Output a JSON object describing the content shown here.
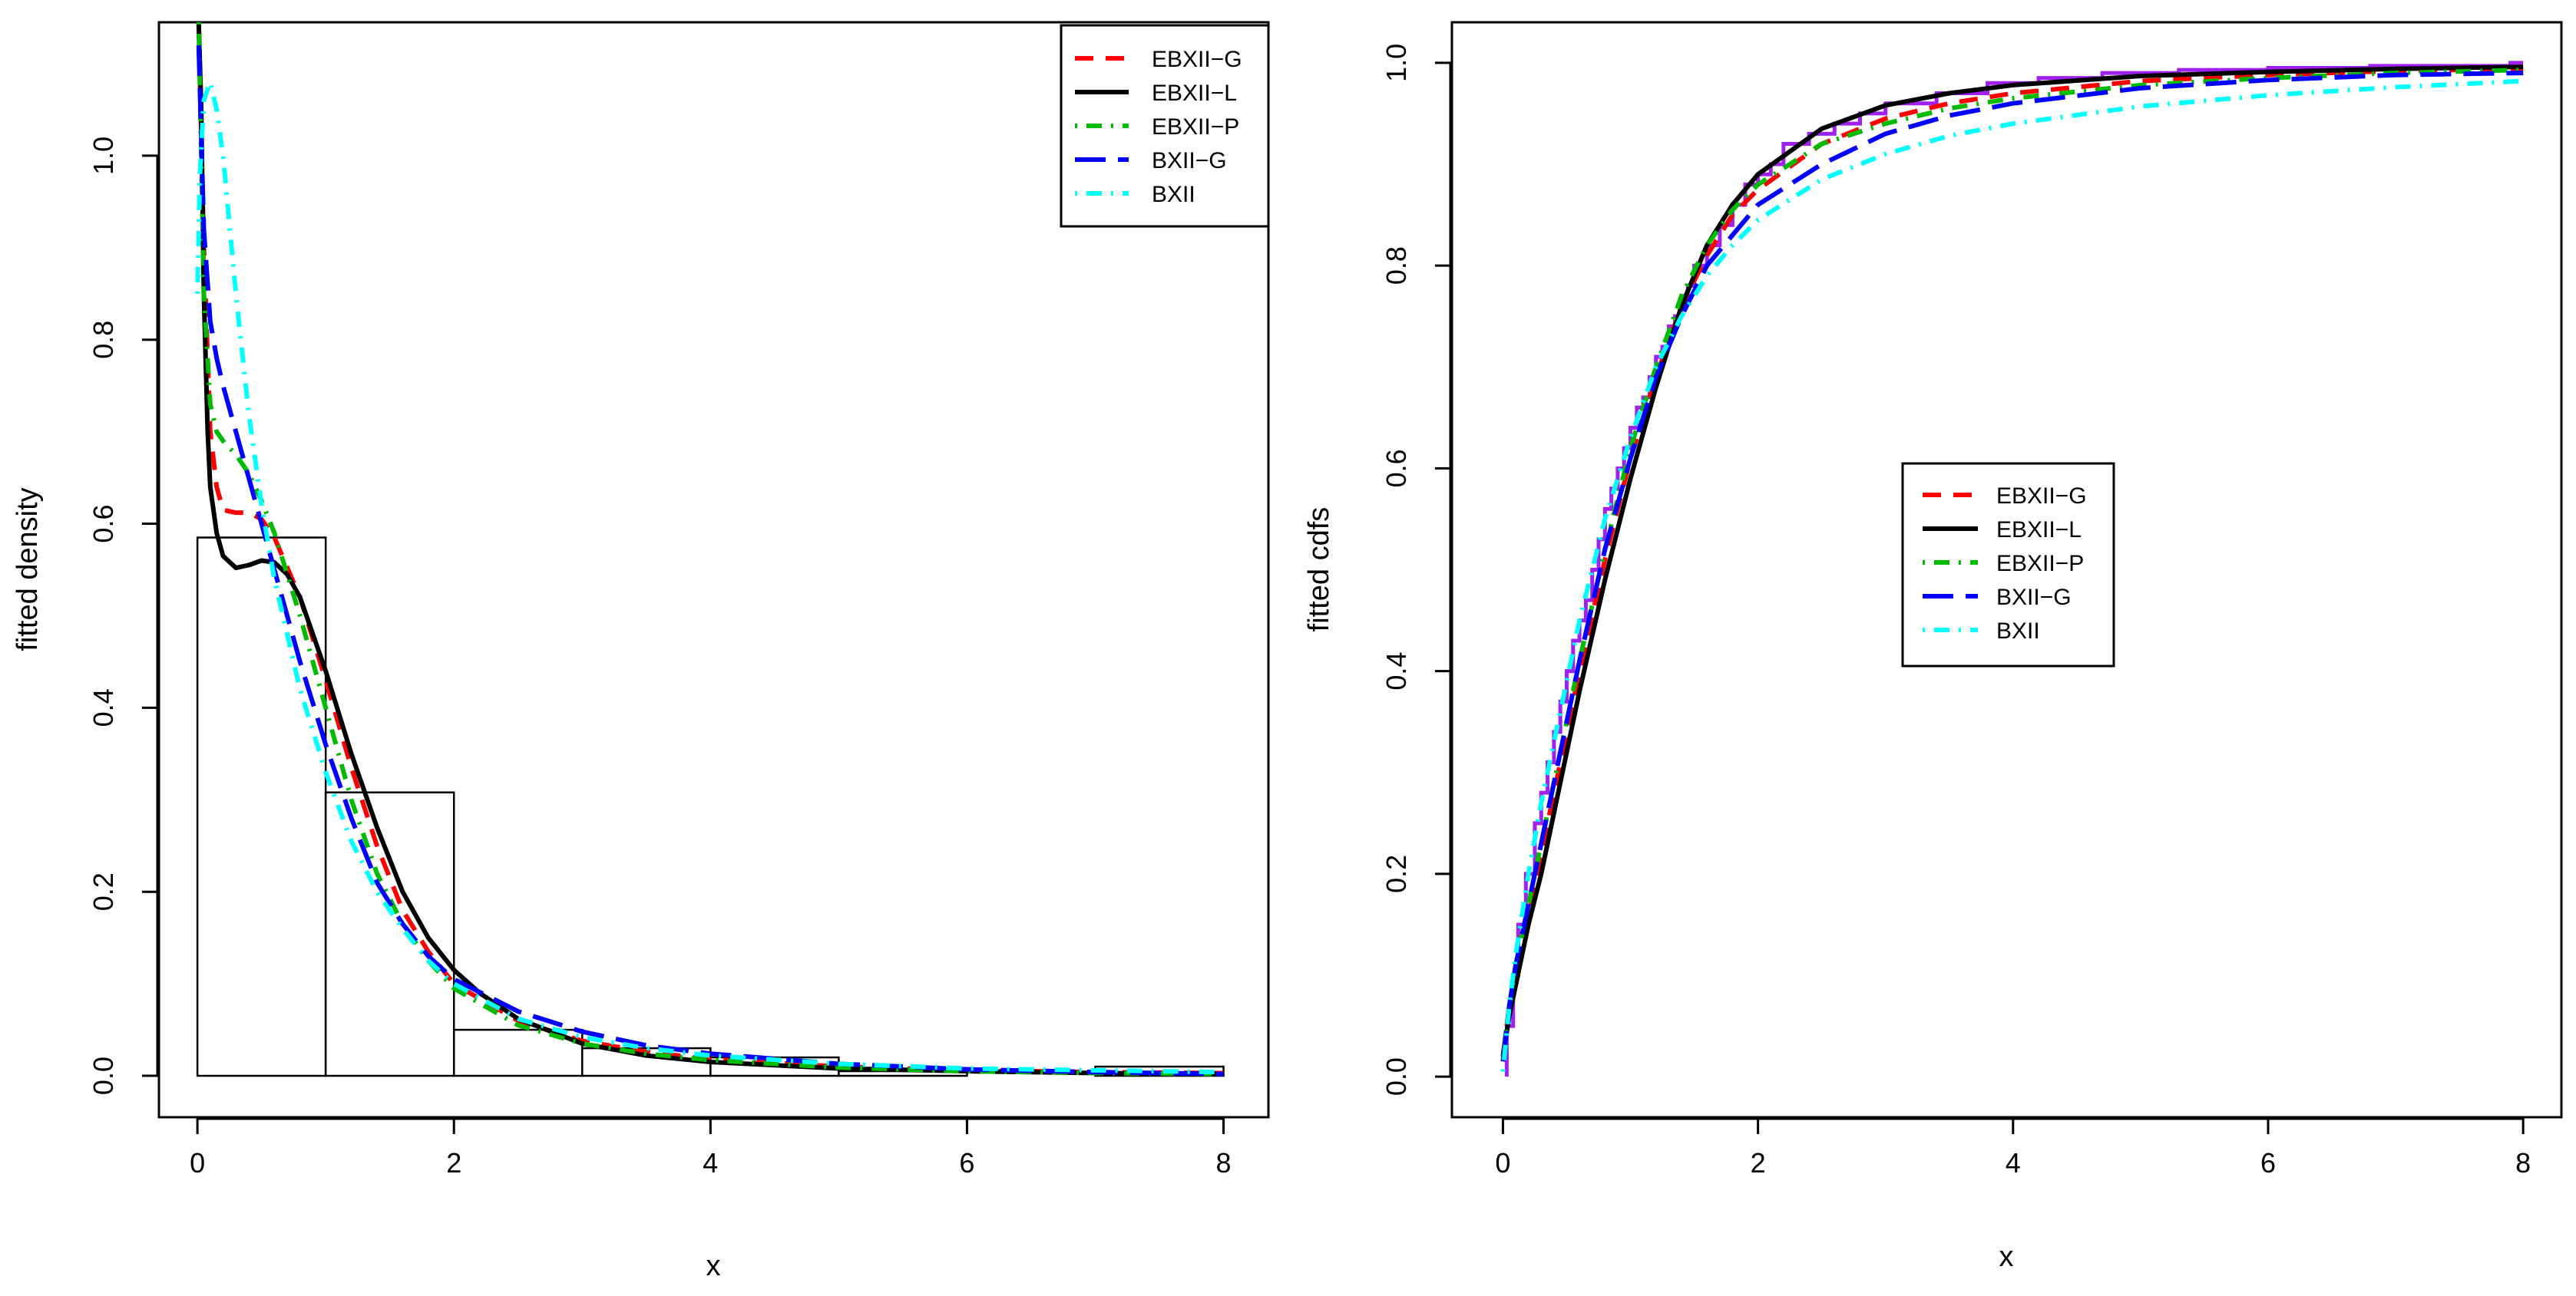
{
  "colors": {
    "EBXII-G": "#ff0000",
    "EBXII-L": "#000000",
    "EBXII-P": "#00bb00",
    "BXII-G": "#0000ff",
    "BXII": "#00ffff",
    "empirical": "#a020f0"
  },
  "chart_data": [
    {
      "type": "line",
      "overlay": "histogram",
      "title": "",
      "xlabel": "x",
      "ylabel": "fitted density",
      "xlim": [
        -0.3,
        8.35
      ],
      "ylim": [
        -0.045,
        1.145
      ],
      "xticks": [
        0,
        2,
        4,
        6,
        8
      ],
      "yticks": [
        0.0,
        0.2,
        0.4,
        0.6,
        0.8,
        1.0
      ],
      "xtick_labels": [
        "0",
        "2",
        "4",
        "6",
        "8"
      ],
      "ytick_labels": [
        "0.0",
        "0.2",
        "0.4",
        "0.6",
        "0.8",
        "1.0"
      ],
      "legend_position": "top-right",
      "legend": [
        "EBXII−G",
        "EBXII−L",
        "EBXII−P",
        "BXII−G",
        "BXII"
      ],
      "histogram": {
        "bin_edges": [
          0,
          1,
          2,
          3,
          4,
          5,
          6,
          7,
          8
        ],
        "density": [
          0.585,
          0.308,
          0.05,
          0.03,
          0.02,
          0.005,
          0.0,
          0.01
        ]
      },
      "series": [
        {
          "name": "EBXII-G",
          "dash": "dash",
          "x": [
            0.01,
            0.05,
            0.1,
            0.15,
            0.2,
            0.3,
            0.4,
            0.5,
            0.6,
            0.8,
            1.0,
            1.2,
            1.4,
            1.6,
            1.8,
            2.0,
            2.5,
            3.0,
            3.5,
            4.0,
            5.0,
            6.0,
            7.0,
            8.0
          ],
          "y": [
            1.15,
            0.9,
            0.7,
            0.64,
            0.615,
            0.612,
            0.612,
            0.605,
            0.585,
            0.52,
            0.43,
            0.335,
            0.25,
            0.18,
            0.135,
            0.1,
            0.06,
            0.038,
            0.026,
            0.018,
            0.01,
            0.006,
            0.004,
            0.003
          ]
        },
        {
          "name": "EBXII-L",
          "dash": "solid",
          "x": [
            0.01,
            0.03,
            0.05,
            0.08,
            0.1,
            0.15,
            0.2,
            0.3,
            0.4,
            0.5,
            0.6,
            0.7,
            0.8,
            0.9,
            1.0,
            1.1,
            1.2,
            1.3,
            1.4,
            1.6,
            1.8,
            2.0,
            2.2,
            2.5,
            3.0,
            3.5,
            4.0,
            5.0,
            6.0,
            7.0,
            8.0
          ],
          "y": [
            1.15,
            1.05,
            0.85,
            0.7,
            0.64,
            0.59,
            0.565,
            0.552,
            0.555,
            0.56,
            0.558,
            0.545,
            0.52,
            0.48,
            0.44,
            0.395,
            0.35,
            0.31,
            0.27,
            0.2,
            0.15,
            0.115,
            0.09,
            0.062,
            0.035,
            0.022,
            0.015,
            0.008,
            0.005,
            0.003,
            0.002
          ]
        },
        {
          "name": "EBXII-P",
          "dash": "dotdash",
          "x": [
            0.01,
            0.05,
            0.1,
            0.15,
            0.2,
            0.3,
            0.4,
            0.5,
            0.6,
            0.8,
            1.0,
            1.2,
            1.4,
            1.6,
            1.8,
            2.0,
            2.5,
            3.0,
            3.5,
            4.0,
            5.0,
            6.0,
            7.0,
            8.0
          ],
          "y": [
            1.15,
            0.85,
            0.73,
            0.7,
            0.69,
            0.675,
            0.655,
            0.625,
            0.59,
            0.5,
            0.4,
            0.3,
            0.22,
            0.165,
            0.125,
            0.095,
            0.055,
            0.035,
            0.024,
            0.017,
            0.009,
            0.005,
            0.003,
            0.002
          ]
        },
        {
          "name": "BXII-G",
          "dash": "longdash",
          "x": [
            0.01,
            0.05,
            0.1,
            0.15,
            0.2,
            0.3,
            0.4,
            0.5,
            0.6,
            0.8,
            1.0,
            1.2,
            1.4,
            1.6,
            1.8,
            2.0,
            2.5,
            3.0,
            3.5,
            4.0,
            5.0,
            6.0,
            7.0,
            8.0
          ],
          "y": [
            1.12,
            0.92,
            0.82,
            0.78,
            0.75,
            0.7,
            0.65,
            0.6,
            0.55,
            0.45,
            0.36,
            0.28,
            0.21,
            0.165,
            0.13,
            0.105,
            0.07,
            0.048,
            0.033,
            0.024,
            0.013,
            0.007,
            0.004,
            0.002
          ]
        },
        {
          "name": "BXII",
          "dash": "dotdash",
          "x": [
            0.0,
            0.02,
            0.05,
            0.1,
            0.15,
            0.2,
            0.3,
            0.4,
            0.5,
            0.6,
            0.8,
            1.0,
            1.2,
            1.4,
            1.6,
            1.8,
            2.0,
            2.5,
            3.0,
            3.5,
            4.0,
            5.0,
            6.0,
            7.0,
            8.0
          ],
          "y": [
            0.85,
            0.98,
            1.06,
            1.08,
            1.05,
            1.0,
            0.85,
            0.72,
            0.62,
            0.54,
            0.42,
            0.33,
            0.255,
            0.2,
            0.16,
            0.125,
            0.1,
            0.062,
            0.042,
            0.03,
            0.022,
            0.013,
            0.008,
            0.006,
            0.004
          ]
        }
      ]
    },
    {
      "type": "line",
      "title": "",
      "xlabel": "x",
      "ylabel": "fitted cdfs",
      "xlim": [
        -0.4,
        8.3
      ],
      "ylim": [
        -0.04,
        1.04
      ],
      "xticks": [
        0,
        2,
        4,
        6,
        8
      ],
      "yticks": [
        0.0,
        0.2,
        0.4,
        0.6,
        0.8,
        1.0
      ],
      "xtick_labels": [
        "0",
        "2",
        "4",
        "6",
        "8"
      ],
      "ytick_labels": [
        "0.0",
        "0.2",
        "0.4",
        "0.6",
        "0.8",
        "1.0"
      ],
      "legend_position": "center",
      "legend": [
        "EBXII−G",
        "EBXII−L",
        "EBXII−P",
        "BXII−G",
        "BXII"
      ],
      "empirical_cdf": {
        "x": [
          0.03,
          0.08,
          0.12,
          0.18,
          0.25,
          0.3,
          0.35,
          0.4,
          0.45,
          0.5,
          0.55,
          0.6,
          0.65,
          0.7,
          0.75,
          0.8,
          0.85,
          0.9,
          0.95,
          1.0,
          1.05,
          1.1,
          1.15,
          1.2,
          1.25,
          1.3,
          1.35,
          1.4,
          1.45,
          1.5,
          1.6,
          1.7,
          1.8,
          1.9,
          2.0,
          2.1,
          2.2,
          2.4,
          2.6,
          2.8,
          3.0,
          3.4,
          3.8,
          4.2,
          4.7,
          5.3,
          6.0,
          6.8,
          7.9
        ],
        "y": [
          0.05,
          0.1,
          0.15,
          0.2,
          0.25,
          0.28,
          0.31,
          0.34,
          0.37,
          0.4,
          0.43,
          0.45,
          0.47,
          0.5,
          0.53,
          0.56,
          0.58,
          0.6,
          0.62,
          0.64,
          0.66,
          0.67,
          0.69,
          0.71,
          0.72,
          0.74,
          0.75,
          0.77,
          0.78,
          0.8,
          0.82,
          0.84,
          0.86,
          0.88,
          0.89,
          0.9,
          0.92,
          0.93,
          0.94,
          0.95,
          0.96,
          0.97,
          0.98,
          0.985,
          0.99,
          0.993,
          0.995,
          0.997,
          1.0
        ]
      },
      "series": [
        {
          "name": "EBXII-G",
          "dash": "dash",
          "x": [
            0.0,
            0.05,
            0.1,
            0.2,
            0.3,
            0.4,
            0.5,
            0.6,
            0.8,
            1.0,
            1.2,
            1.4,
            1.6,
            1.8,
            2.0,
            2.5,
            3.0,
            3.5,
            4.0,
            5.0,
            6.0,
            7.0,
            8.0
          ],
          "y": [
            0.02,
            0.07,
            0.1,
            0.16,
            0.22,
            0.28,
            0.34,
            0.4,
            0.51,
            0.61,
            0.69,
            0.76,
            0.81,
            0.85,
            0.875,
            0.92,
            0.945,
            0.96,
            0.97,
            0.982,
            0.988,
            0.992,
            0.994
          ]
        },
        {
          "name": "EBXII-L",
          "dash": "solid",
          "x": [
            0.0,
            0.05,
            0.1,
            0.2,
            0.3,
            0.4,
            0.5,
            0.6,
            0.8,
            1.0,
            1.2,
            1.4,
            1.6,
            1.8,
            2.0,
            2.5,
            3.0,
            3.5,
            4.0,
            5.0,
            6.0,
            7.0,
            8.0
          ],
          "y": [
            0.02,
            0.06,
            0.09,
            0.15,
            0.2,
            0.26,
            0.32,
            0.38,
            0.49,
            0.59,
            0.68,
            0.76,
            0.82,
            0.86,
            0.89,
            0.935,
            0.958,
            0.97,
            0.978,
            0.987,
            0.991,
            0.994,
            0.996
          ]
        },
        {
          "name": "EBXII-P",
          "dash": "dotdash",
          "x": [
            0.0,
            0.05,
            0.1,
            0.2,
            0.3,
            0.4,
            0.5,
            0.6,
            0.8,
            1.0,
            1.2,
            1.4,
            1.6,
            1.8,
            2.0,
            2.5,
            3.0,
            3.5,
            4.0,
            5.0,
            6.0,
            7.0,
            8.0
          ],
          "y": [
            0.02,
            0.07,
            0.11,
            0.17,
            0.23,
            0.29,
            0.35,
            0.41,
            0.52,
            0.62,
            0.7,
            0.77,
            0.82,
            0.855,
            0.88,
            0.92,
            0.94,
            0.955,
            0.965,
            0.978,
            0.985,
            0.99,
            0.993
          ]
        },
        {
          "name": "BXII-G",
          "dash": "longdash",
          "x": [
            0.0,
            0.05,
            0.1,
            0.2,
            0.3,
            0.4,
            0.5,
            0.6,
            0.8,
            1.0,
            1.2,
            1.4,
            1.6,
            1.8,
            2.0,
            2.5,
            3.0,
            3.5,
            4.0,
            5.0,
            6.0,
            7.0,
            8.0
          ],
          "y": [
            0.015,
            0.07,
            0.11,
            0.17,
            0.23,
            0.29,
            0.35,
            0.41,
            0.52,
            0.61,
            0.69,
            0.75,
            0.8,
            0.83,
            0.86,
            0.9,
            0.93,
            0.948,
            0.96,
            0.975,
            0.983,
            0.988,
            0.99
          ]
        },
        {
          "name": "BXII",
          "dash": "dotdash",
          "x": [
            0.0,
            0.05,
            0.1,
            0.2,
            0.3,
            0.4,
            0.5,
            0.6,
            0.8,
            1.0,
            1.2,
            1.4,
            1.6,
            1.8,
            2.0,
            2.5,
            3.0,
            3.5,
            4.0,
            5.0,
            6.0,
            7.0,
            8.0
          ],
          "y": [
            0.005,
            0.07,
            0.12,
            0.2,
            0.27,
            0.33,
            0.39,
            0.45,
            0.55,
            0.63,
            0.7,
            0.75,
            0.79,
            0.82,
            0.845,
            0.885,
            0.91,
            0.928,
            0.94,
            0.957,
            0.968,
            0.976,
            0.982
          ]
        }
      ]
    }
  ]
}
